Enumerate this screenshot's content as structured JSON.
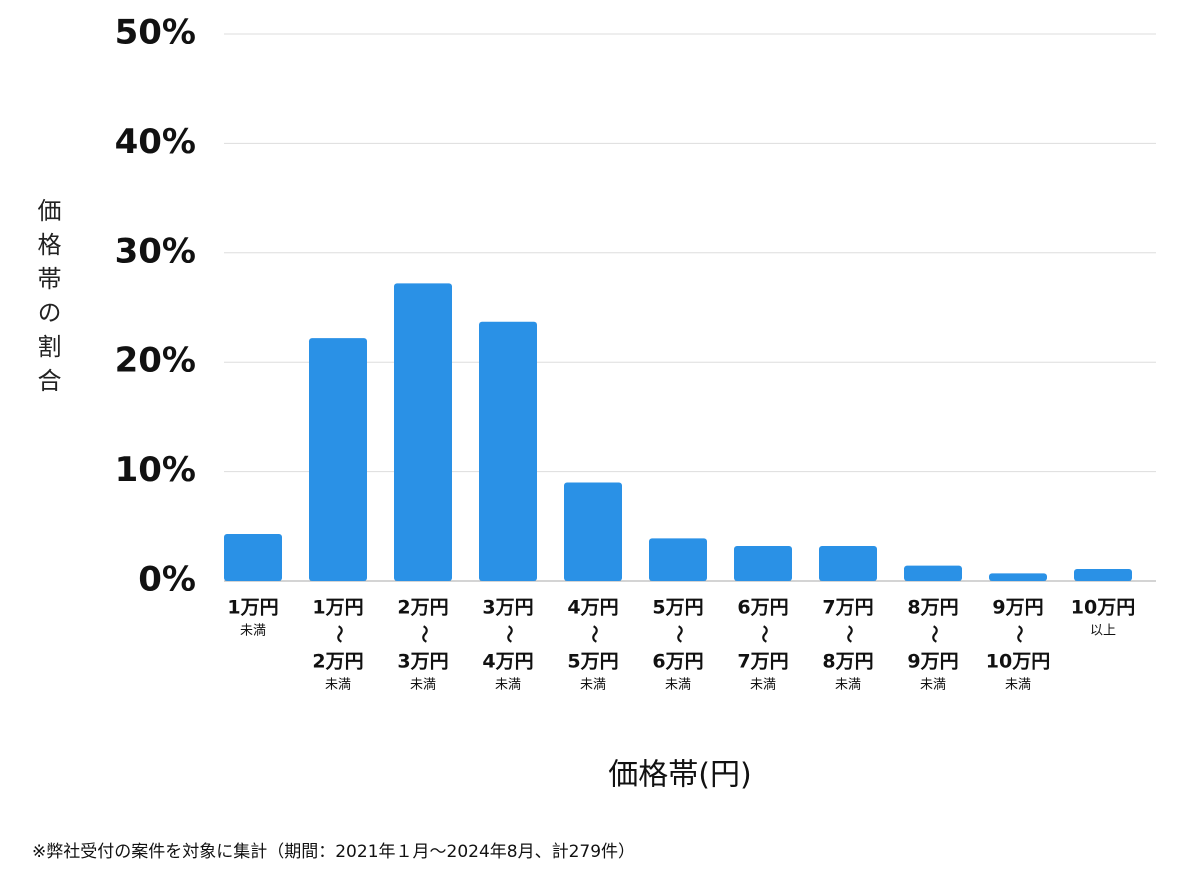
{
  "chart_data": {
    "type": "bar",
    "y_label": "価格帯の割合",
    "x_label": "価格帯(円)",
    "footnote": "※弊社受付の案件を対象に集計（期間：2021年１月～2024年8月、計279件）",
    "categories": [
      [
        "1万円",
        "未満"
      ],
      [
        "1万円",
        "〜",
        "2万円",
        "未満"
      ],
      [
        "2万円",
        "〜",
        "3万円",
        "未満"
      ],
      [
        "3万円",
        "〜",
        "4万円",
        "未満"
      ],
      [
        "4万円",
        "〜",
        "5万円",
        "未満"
      ],
      [
        "5万円",
        "〜",
        "6万円",
        "未満"
      ],
      [
        "6万円",
        "〜",
        "7万円",
        "未満"
      ],
      [
        "7万円",
        "〜",
        "8万円",
        "未満"
      ],
      [
        "8万円",
        "〜",
        "9万円",
        "未満"
      ],
      [
        "9万円",
        "〜",
        "10万円",
        "未満"
      ],
      [
        "10万円",
        "以上"
      ]
    ],
    "values": [
      4.3,
      22.2,
      27.2,
      23.7,
      9.0,
      3.9,
      3.2,
      3.2,
      1.4,
      0.7,
      1.1
    ],
    "color": "#2a91e6",
    "ylim": [
      0,
      50
    ],
    "yticks": [
      {
        "value": 0,
        "label": "0%"
      },
      {
        "value": 10,
        "label": "10%"
      },
      {
        "value": 20,
        "label": "20%"
      },
      {
        "value": 30,
        "label": "30%"
      },
      {
        "value": 40,
        "label": "40%"
      },
      {
        "value": 50,
        "label": "50%"
      }
    ],
    "grid": true
  }
}
